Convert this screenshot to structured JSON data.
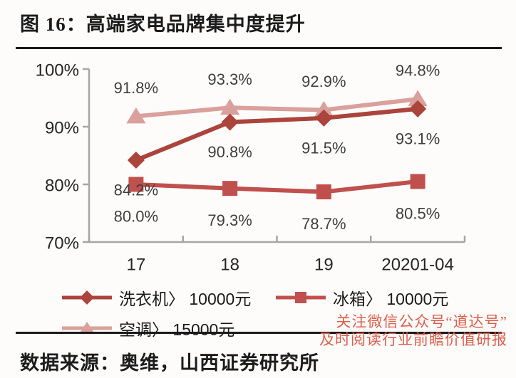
{
  "figure": {
    "title": "图 16：高端家电品牌集中度提升",
    "source": "数据来源：奥维，山西证券研究所"
  },
  "watermark": {
    "line1": "关注微信公众号“道达号”",
    "line2": "及时阅读行业前瞻价值研报",
    "color": "#dc5e4d"
  },
  "chart_data": {
    "type": "line",
    "title": "高端家电品牌集中度提升",
    "categories": [
      "17",
      "18",
      "19",
      "20201-04"
    ],
    "series": [
      {
        "name": "洗衣机〉 10000元",
        "values": [
          84.2,
          90.8,
          91.5,
          93.1
        ],
        "color": "#ab443c",
        "marker": "diamond",
        "label_position": "below"
      },
      {
        "name": "冰箱〉 10000元",
        "values": [
          80.0,
          79.3,
          78.7,
          80.5
        ],
        "color": "#c0504d",
        "marker": "square",
        "label_position": "below"
      },
      {
        "name": "空调〉 15000元",
        "values": [
          91.8,
          93.3,
          92.9,
          94.8
        ],
        "color": "#d9a09c",
        "marker": "triangle",
        "label_position": "above"
      }
    ],
    "ylim": [
      70,
      100
    ],
    "yticks": [
      100,
      90,
      80,
      70
    ],
    "y_tick_suffix": "%",
    "data_labels": true,
    "data_label_suffix": "%",
    "grid": false,
    "legend_position": "bottom-left",
    "axis_color": "#a6a6a6",
    "label_color": "#3f3f3f"
  }
}
